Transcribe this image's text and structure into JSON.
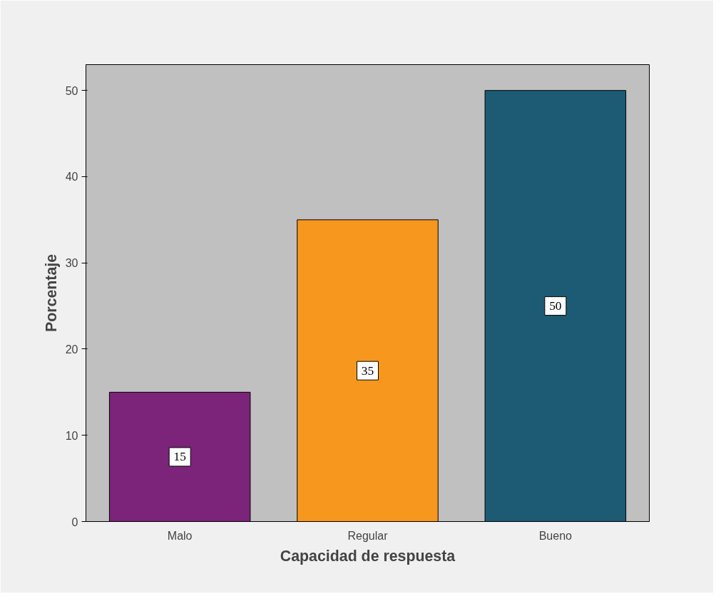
{
  "chart_data": {
    "type": "bar",
    "xlabel": "Capacidad de respuesta",
    "ylabel": "Porcentaje",
    "categories": [
      "Malo",
      "Regular",
      "Bueno"
    ],
    "values": [
      15,
      35,
      50
    ],
    "colors": [
      "#7b2479",
      "#f7971e",
      "#1c5b73"
    ],
    "ylim": [
      0,
      53
    ],
    "yticks": [
      0,
      10,
      20,
      30,
      40,
      50
    ],
    "data_labels": true,
    "grid": false
  }
}
